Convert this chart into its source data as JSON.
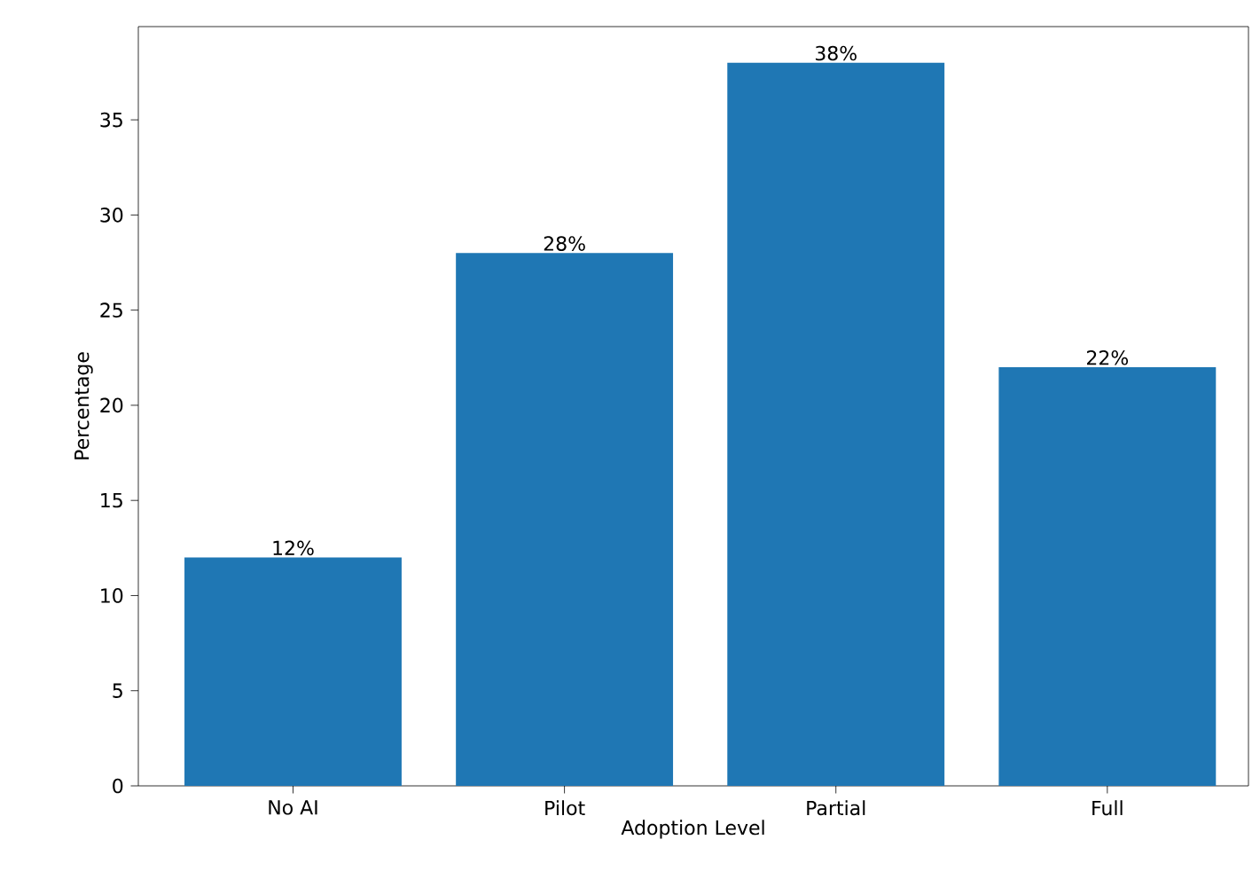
{
  "chart_data": {
    "type": "bar",
    "xlabel": "Adoption Level",
    "ylabel": "Percentage",
    "categories": [
      "No AI",
      "Pilot",
      "Partial",
      "Full"
    ],
    "values": [
      12,
      28,
      38,
      22
    ],
    "value_labels": [
      "12%",
      "28%",
      "38%",
      "22%"
    ],
    "color": "#1f77b4",
    "ylim": [
      0,
      39.9
    ],
    "yticks": [
      0,
      5,
      10,
      15,
      20,
      25,
      30,
      35
    ]
  }
}
